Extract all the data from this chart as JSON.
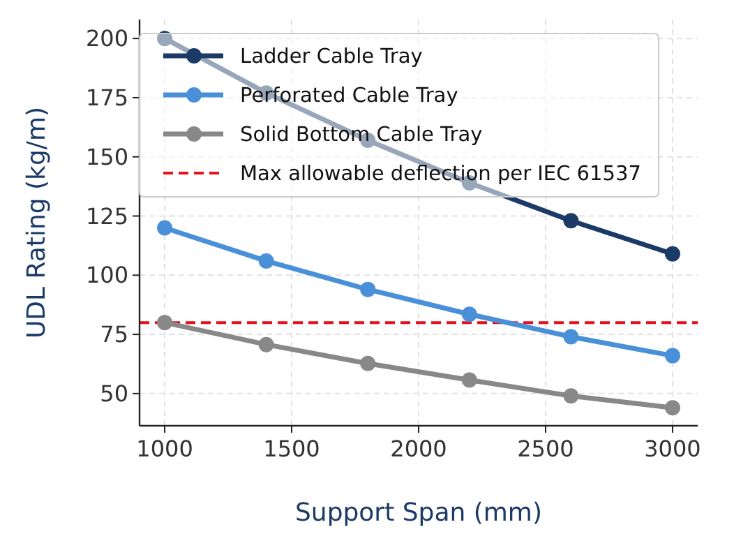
{
  "chart_data": {
    "type": "line",
    "xlabel": "Support Span (mm)",
    "ylabel": "UDL Rating (kg/m)",
    "x": [
      1000,
      1400,
      1800,
      2200,
      2600,
      3000
    ],
    "series": [
      {
        "name": "Ladder Cable Tray",
        "color": "#1b3a66",
        "values": [
          200,
          177,
          157,
          139,
          123,
          109
        ]
      },
      {
        "name": "Perforated Cable Tray",
        "color": "#4a90d9",
        "values": [
          120,
          106,
          94,
          83.5,
          74,
          66
        ]
      },
      {
        "name": "Solid Bottom Cable Tray",
        "color": "#888888",
        "values": [
          80,
          70.7,
          62.7,
          55.7,
          49,
          44
        ]
      }
    ],
    "ref_lines": [
      {
        "axis": "y",
        "value": 80,
        "label": "Max allowable deflection per IEC 61537",
        "color": "#e8101a",
        "line_style": "dashed"
      }
    ],
    "xlim": [
      901,
      3099
    ],
    "ylim": [
      36.4,
      208
    ],
    "xticks": [
      1000,
      1500,
      2000,
      2500,
      3000
    ],
    "yticks": [
      50,
      75,
      100,
      125,
      150,
      175,
      200
    ],
    "grid": true,
    "legend": "top left",
    "marker": "circle",
    "line_style": "solid"
  }
}
